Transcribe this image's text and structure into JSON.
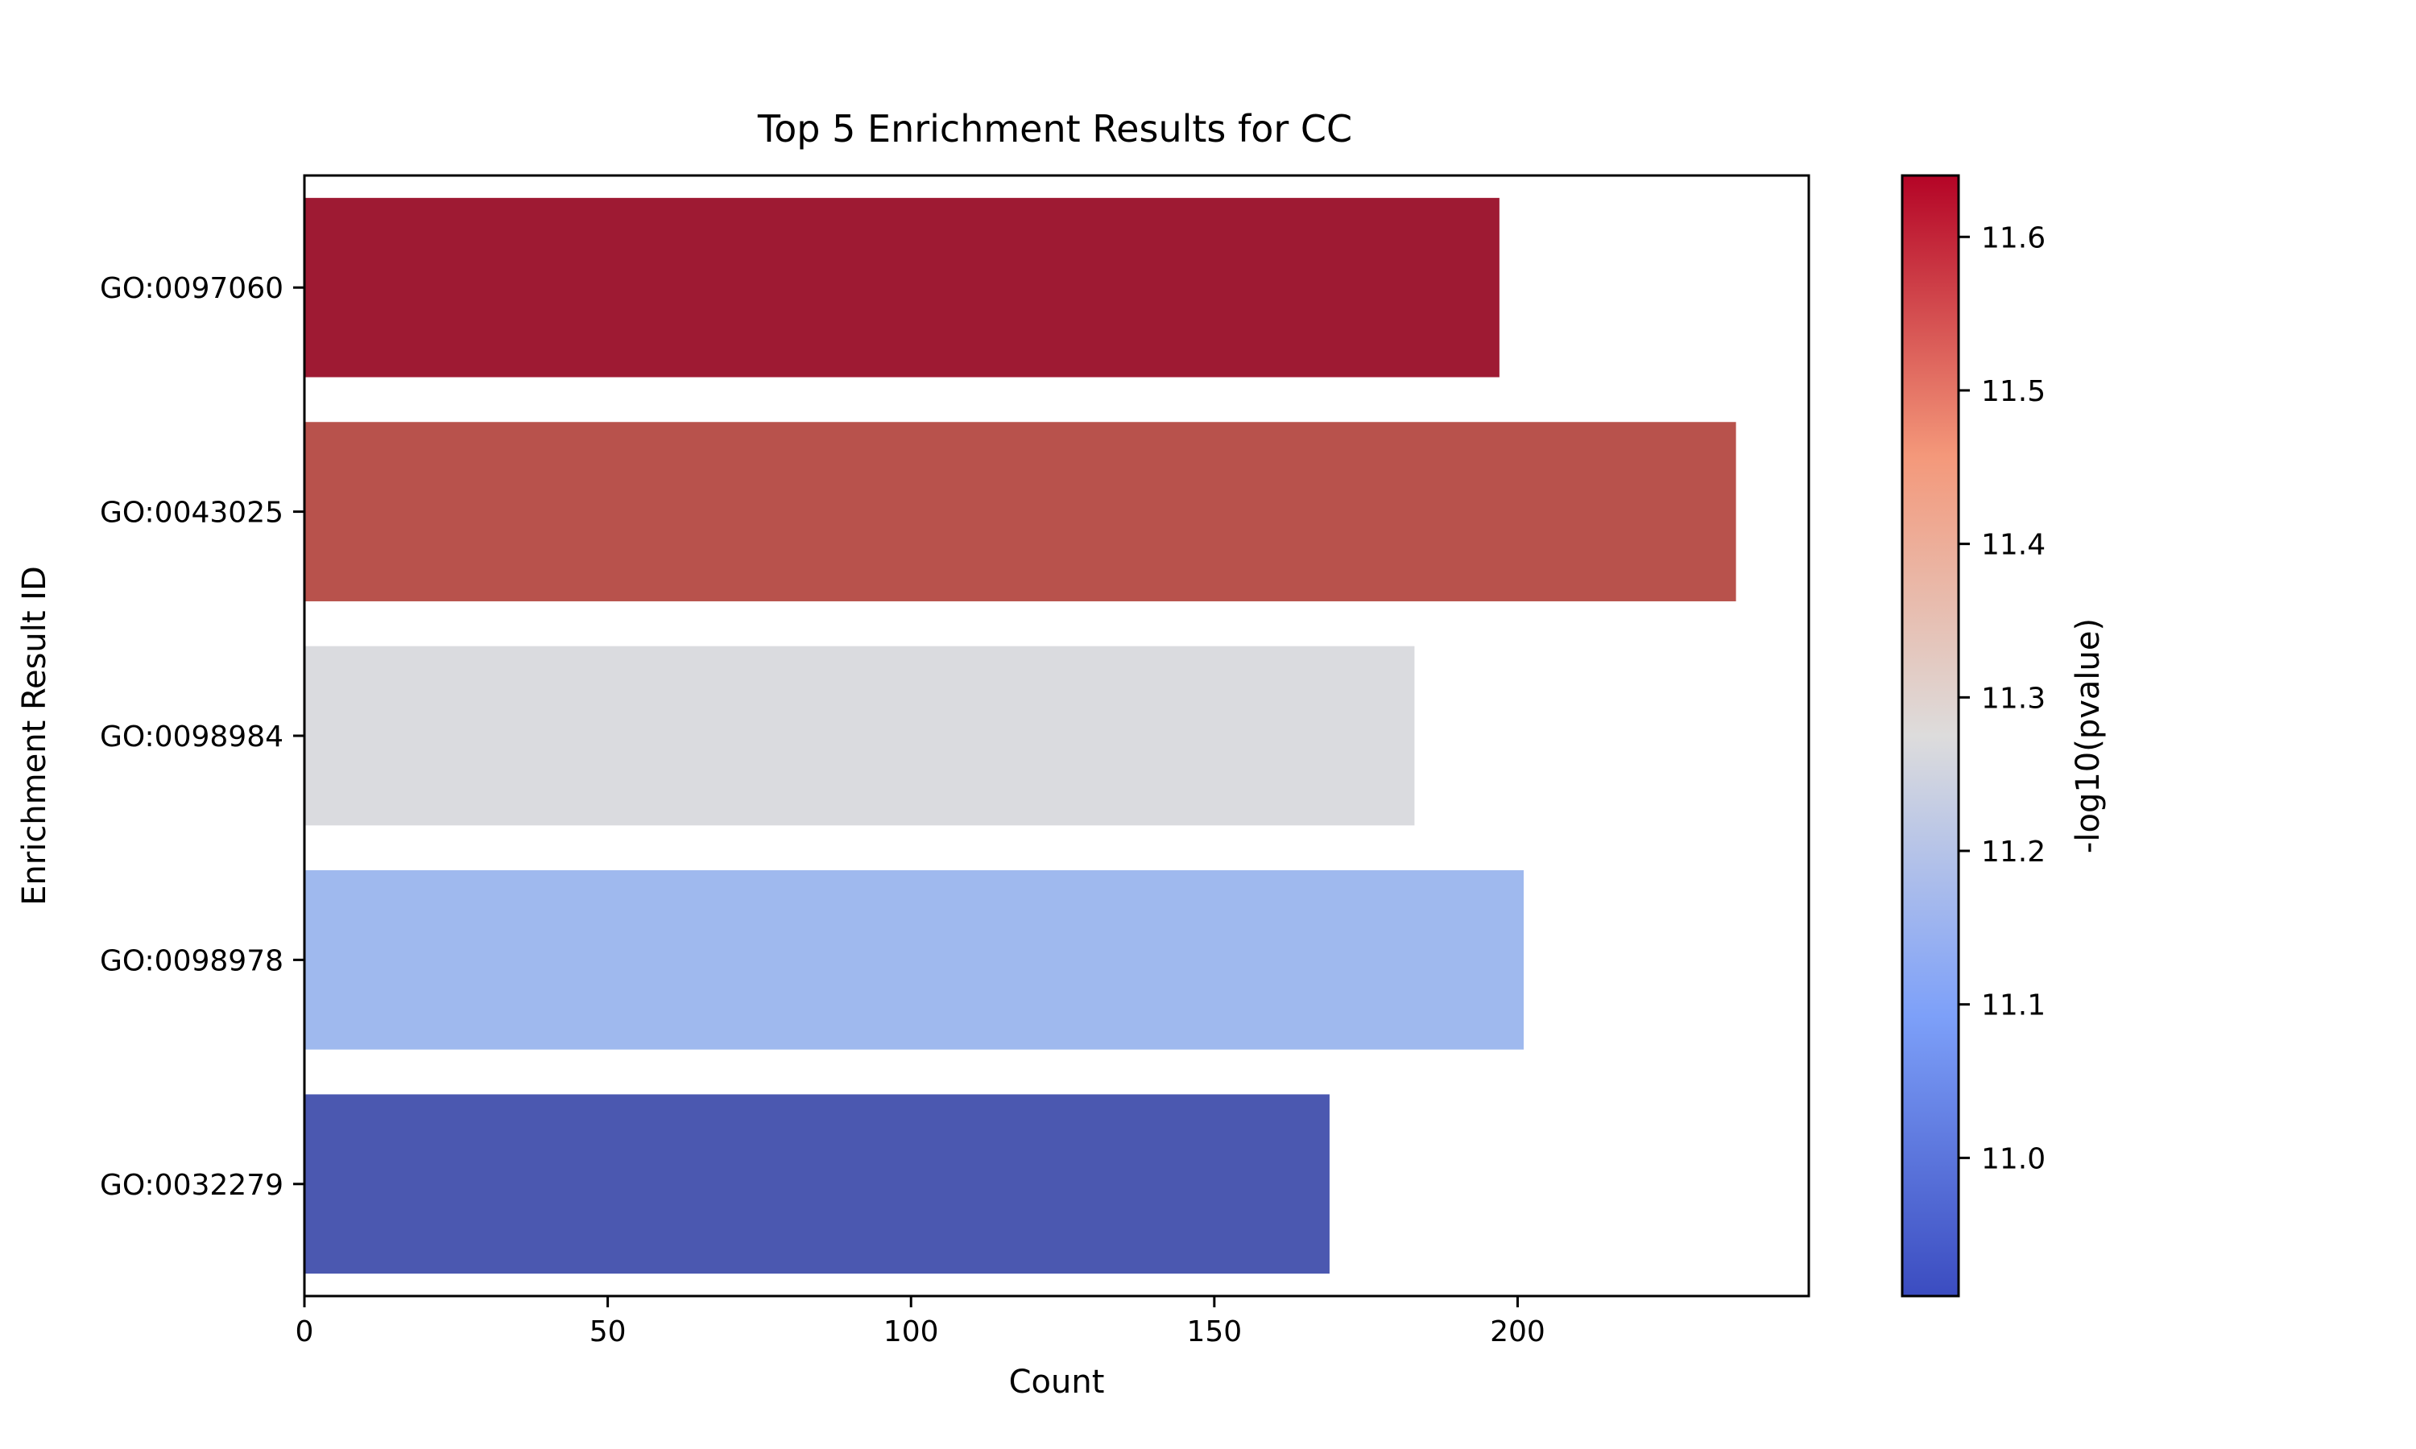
{
  "chart_data": {
    "type": "bar",
    "orientation": "horizontal",
    "title": "Top 5 Enrichment Results for CC",
    "xlabel": "Count",
    "ylabel": "Enrichment Result ID",
    "categories": [
      "GO:0097060",
      "GO:0043025",
      "GO:0098984",
      "GO:0098978",
      "GO:0032279"
    ],
    "values": [
      197,
      236,
      183,
      201,
      169
    ],
    "bar_colors": [
      "#9e1a33",
      "#b8524c",
      "#dadbdf",
      "#9fb9ee",
      "#4b58b0"
    ],
    "color_values": [
      11.64,
      11.57,
      11.28,
      11.12,
      10.91
    ],
    "xlim": [
      0,
      248
    ],
    "xticks": [
      "0",
      "50",
      "100",
      "150",
      "200"
    ],
    "xtick_values": [
      0,
      50,
      100,
      150,
      200
    ],
    "grid": false,
    "colorbar": {
      "label": "-log10(pvalue)",
      "range": [
        10.91,
        11.64
      ],
      "colormap": "coolwarm",
      "ticks": [
        "11.0",
        "11.1",
        "11.2",
        "11.3",
        "11.4",
        "11.5",
        "11.6"
      ],
      "tick_values": [
        11.0,
        11.1,
        11.2,
        11.3,
        11.4,
        11.5,
        11.6
      ]
    }
  }
}
